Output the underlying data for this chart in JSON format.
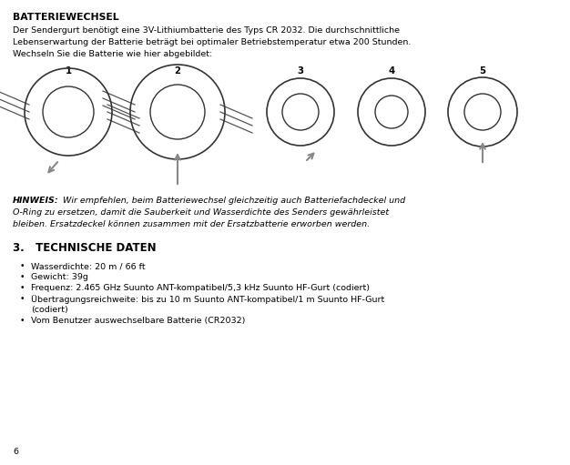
{
  "title": "BATTERIEWECHSEL",
  "intro_line1": "Der Sendergurt benötigt eine 3V-Lithiumbatterie des Typs CR 2032. Die durchschnittliche",
  "intro_line2": "Lebenserwartung der Batterie beträgt bei optimaler Betriebstemperatur etwa 200 Stunden.",
  "intro_line3": "Wechseln Sie die Batterie wie hier abgebildet:",
  "hinweis_label": "HINWEIS:",
  "hinweis_line1": " Wir empfehlen, beim Batteriewechsel gleichzeitig auch Batteriefachdeckel und",
  "hinweis_line2": "O-Ring zu ersetzen, damit die Sauberkeit und Wasserdichte des Senders gewährleistet",
  "hinweis_line3": "bleiben. Ersatzdeckel können zusammen mit der Ersatzbatterie erworben werden.",
  "section_heading": "3.   TECHNISCHE DATEN",
  "bullets": [
    "Wasserdichte: 20 m / 66 ft",
    "Gewicht: 39g",
    "Frequenz: 2.465 GHz Suunto ANT-kompatibel/5,3 kHz Suunto HF-Gurt (codiert)",
    "Übertragungsreichweite: bis zu 10 m Suunto ANT-kompatibel/1 m Suunto HF-Gurt\n(codiert)",
    "Vom Benutzer auswechselbare Batterie (CR2032)"
  ],
  "page_number": "6",
  "bg_color": "#ffffff",
  "text_color": "#000000",
  "img_numbers": [
    "1",
    "2",
    "3",
    "4",
    "5"
  ],
  "title_fontsize": 7.8,
  "body_fontsize": 6.8,
  "hinweis_fontsize": 6.8,
  "section_fontsize": 8.5,
  "bullet_fontsize": 6.8,
  "page_num_fontsize": 6.8
}
